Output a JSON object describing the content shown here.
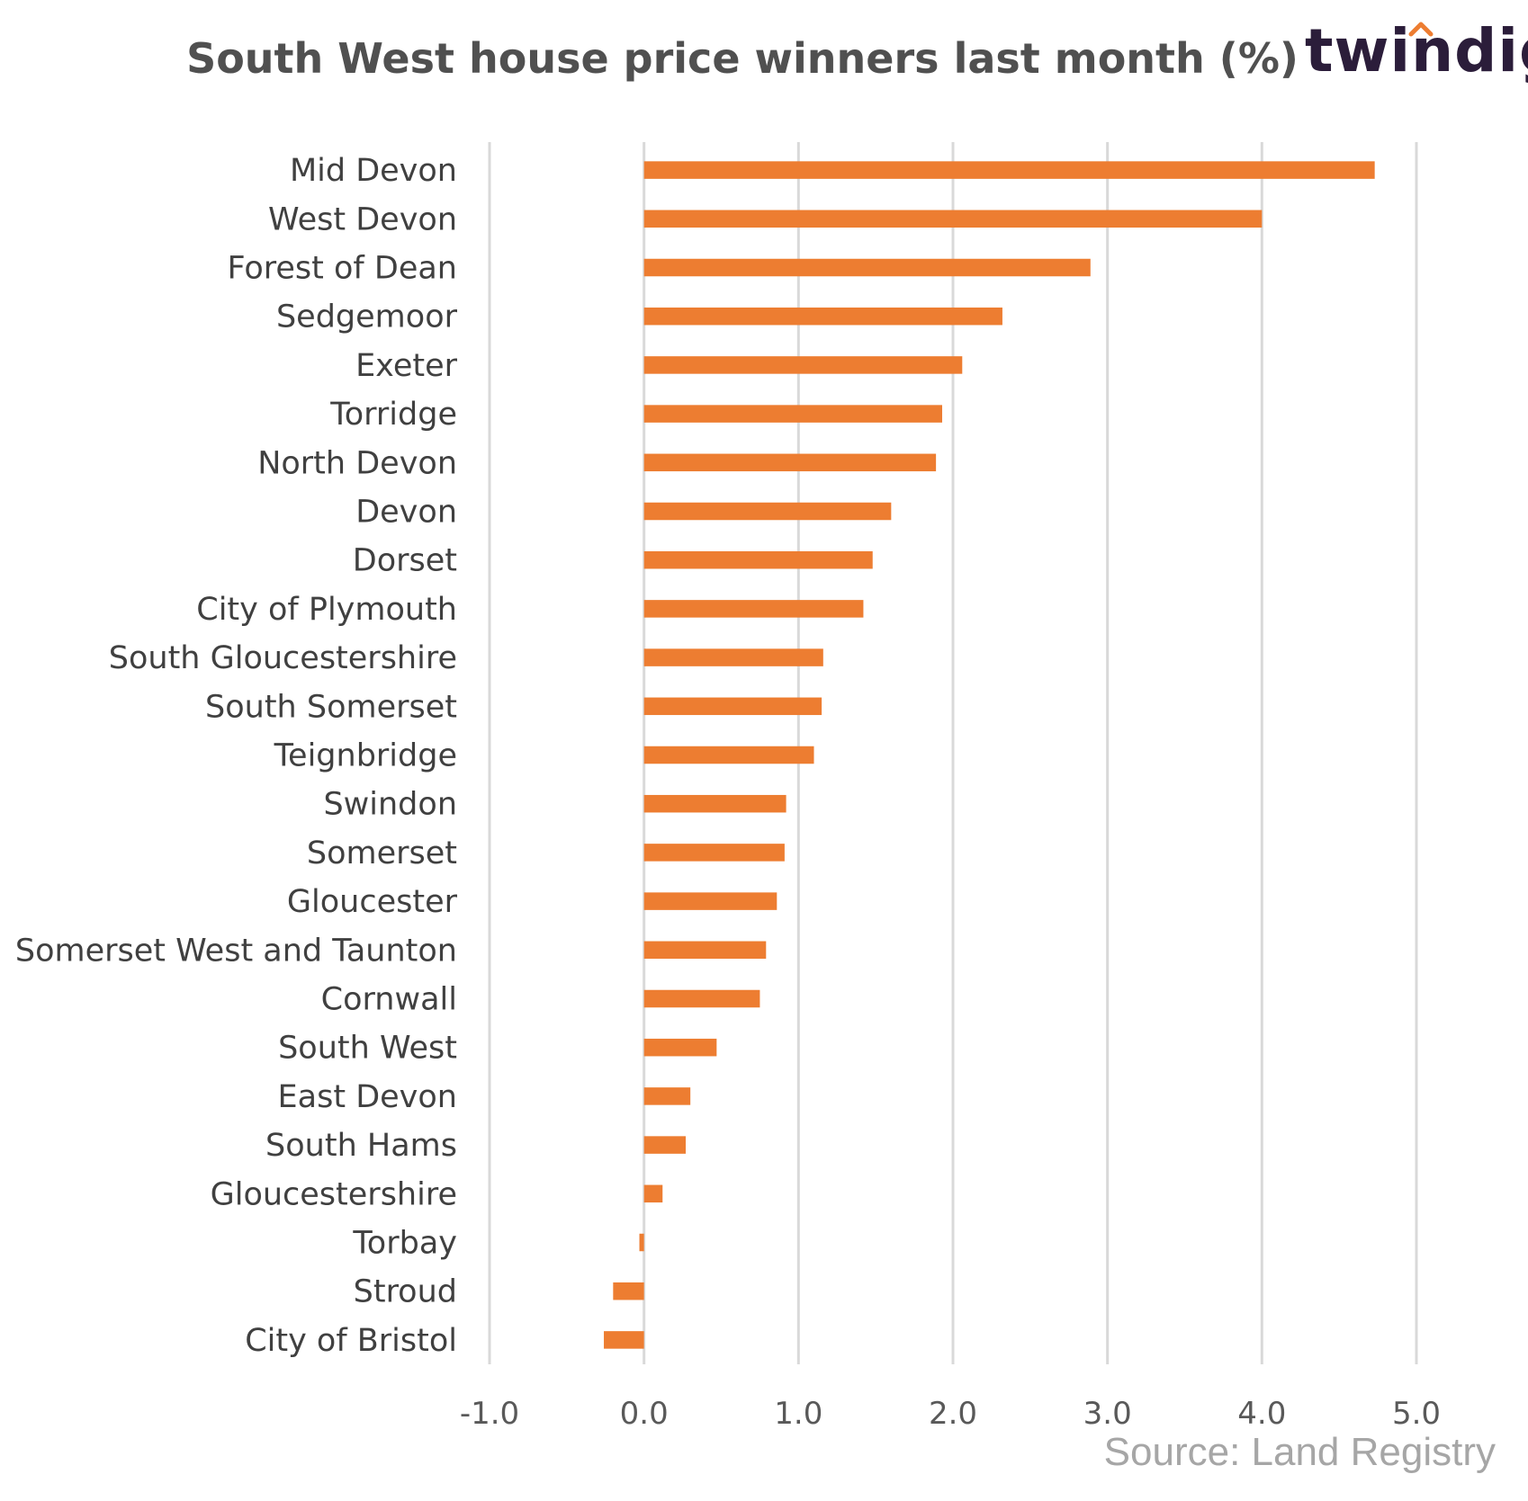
{
  "brand": {
    "logo_text": "twindig",
    "accent_color": "#ed7d31",
    "logo_color": "#2b1d3a"
  },
  "source": "Source: Land Registry",
  "chart_data": {
    "type": "bar",
    "orientation": "horizontal",
    "title": "South West house price winners last month (%)",
    "xlabel": "",
    "ylabel": "",
    "xlim": [
      -1.0,
      5.0
    ],
    "xticks": [
      "-1.0",
      "0.0",
      "1.0",
      "2.0",
      "3.0",
      "4.0",
      "5.0"
    ],
    "grid": true,
    "bar_color": "#ed7d31",
    "categories": [
      "Mid Devon",
      "West Devon",
      "Forest of Dean",
      "Sedgemoor",
      "Exeter",
      "Torridge",
      "North Devon",
      "Devon",
      "Dorset",
      "City of Plymouth",
      "South Gloucestershire",
      "South Somerset",
      "Teignbridge",
      "Swindon",
      "Somerset",
      "Gloucester",
      "Somerset West and Taunton",
      "Cornwall",
      "South West",
      "East Devon",
      "South Hams",
      "Gloucestershire",
      "Torbay",
      "Stroud",
      "City of Bristol"
    ],
    "values": [
      4.73,
      4.0,
      2.89,
      2.32,
      2.06,
      1.93,
      1.89,
      1.6,
      1.48,
      1.42,
      1.16,
      1.15,
      1.1,
      0.92,
      0.91,
      0.86,
      0.79,
      0.75,
      0.47,
      0.3,
      0.27,
      0.12,
      -0.03,
      -0.2,
      -0.26
    ]
  }
}
